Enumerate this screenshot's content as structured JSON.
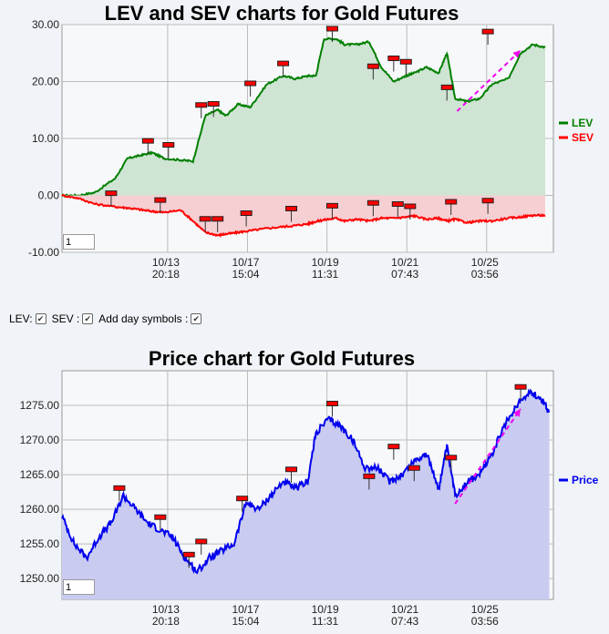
{
  "charts": {
    "lev_sev_title": "LEV and SEV charts for Gold Futures",
    "price_title": "Price chart for Gold Futures"
  },
  "options": {
    "lev_label": "LEV:",
    "sev_label": "SEV :",
    "day_symbols_label": "Add day symbols :",
    "lev_checked": true,
    "sev_checked": true,
    "day_symbols_checked": true
  },
  "zoom": {
    "top_value": "1",
    "bottom_value": "1"
  },
  "colors": {
    "lev": "#008000",
    "sev": "#ff0000",
    "price": "#0000ee",
    "lev_fill": "#cfe4d3",
    "sev_fill": "#f6cfd2",
    "price_fill": "#c9cbf0",
    "marker": "#ff0000",
    "arrow": "#ee00ee"
  },
  "chart_data": [
    {
      "type": "line",
      "title": "LEV and SEV charts for Gold Futures",
      "x_ticks": [
        {
          "x": 10.58,
          "line1": "10/13",
          "line2": "20:18"
        },
        {
          "x": 12.53,
          "line1": "10/17",
          "line2": "15:04"
        },
        {
          "x": 14.47,
          "line1": "10/19",
          "line2": "11:31"
        },
        {
          "x": 16.42,
          "line1": "10/21",
          "line2": "07:43"
        },
        {
          "x": 18.37,
          "line1": "10/25",
          "line2": "03:56"
        }
      ],
      "xlim": [
        8.0,
        20.0
      ],
      "ylim": [
        -10.0,
        30.0
      ],
      "y_ticks": [
        30.0,
        20.0,
        10.0,
        0.0,
        -10.0
      ],
      "y_tick_labels": [
        "30.00",
        "20.00",
        "10.00",
        "0.00",
        "-10.00"
      ],
      "legend": [
        {
          "name": "LEV",
          "color": "#008000"
        },
        {
          "name": "SEV",
          "color": "#ff0000"
        }
      ],
      "legend_position": "right",
      "series": [
        {
          "name": "LEV",
          "x": [
            8.0,
            8.4,
            8.8,
            9.3,
            9.6,
            9.9,
            10.2,
            10.5,
            10.9,
            11.2,
            11.5,
            11.8,
            12.0,
            12.3,
            12.6,
            13.0,
            13.4,
            13.7,
            14.0,
            14.2,
            14.4,
            14.7,
            14.9,
            15.2,
            15.5,
            15.8,
            16.1,
            16.4,
            16.6,
            16.9,
            17.2,
            17.4,
            17.6,
            17.9,
            18.2,
            18.5,
            18.9,
            19.2,
            19.5,
            19.8
          ],
          "values": [
            0.0,
            0.0,
            0.5,
            3.0,
            6.5,
            7.0,
            7.5,
            6.5,
            6.2,
            6.0,
            14.0,
            15.0,
            14.0,
            16.0,
            15.5,
            19.5,
            21.0,
            20.5,
            21.0,
            21.0,
            27.5,
            27.5,
            26.5,
            26.5,
            27.0,
            22.5,
            20.0,
            21.0,
            21.5,
            22.5,
            21.5,
            25.0,
            17.0,
            16.5,
            17.0,
            19.5,
            20.5,
            25.0,
            26.5,
            26.0
          ]
        },
        {
          "name": "SEV",
          "x": [
            8.0,
            8.4,
            8.8,
            9.3,
            9.6,
            9.9,
            10.2,
            10.5,
            10.9,
            11.2,
            11.5,
            11.8,
            12.0,
            12.3,
            12.6,
            13.0,
            13.4,
            13.7,
            14.0,
            14.2,
            14.4,
            14.7,
            14.9,
            15.2,
            15.5,
            15.8,
            16.1,
            16.4,
            16.6,
            16.9,
            17.2,
            17.4,
            17.6,
            17.9,
            18.2,
            18.5,
            18.9,
            19.2,
            19.5,
            19.8
          ],
          "values": [
            0.0,
            -0.5,
            -1.5,
            -2.0,
            -2.2,
            -2.5,
            -2.8,
            -3.0,
            -2.6,
            -4.5,
            -6.5,
            -7.0,
            -6.8,
            -6.5,
            -6.2,
            -5.8,
            -5.5,
            -5.3,
            -5.0,
            -4.6,
            -4.3,
            -4.0,
            -4.5,
            -4.2,
            -4.5,
            -4.0,
            -4.0,
            -3.8,
            -3.6,
            -4.2,
            -4.0,
            -4.5,
            -4.2,
            -4.8,
            -4.5,
            -4.5,
            -4.0,
            -3.8,
            -3.5,
            -3.5
          ]
        }
      ],
      "day_markers_lev": [
        [
          10.1,
          9.5
        ],
        [
          10.6,
          8.8
        ],
        [
          11.4,
          15.8
        ],
        [
          11.7,
          16.0
        ],
        [
          12.6,
          19.6
        ],
        [
          13.4,
          23.1
        ],
        [
          14.6,
          29.2
        ],
        [
          15.6,
          22.6
        ],
        [
          16.1,
          24.0
        ],
        [
          16.4,
          23.4
        ],
        [
          17.4,
          18.9
        ],
        [
          18.4,
          28.7
        ]
      ],
      "day_markers_sev": [
        [
          9.2,
          0.3
        ],
        [
          10.4,
          -0.9
        ],
        [
          11.5,
          -4.2
        ],
        [
          11.8,
          -4.2
        ],
        [
          12.5,
          -3.2
        ],
        [
          13.6,
          -2.4
        ],
        [
          14.6,
          -1.9
        ],
        [
          15.6,
          -1.4
        ],
        [
          16.2,
          -1.6
        ],
        [
          16.5,
          -2.0
        ],
        [
          17.5,
          -1.2
        ],
        [
          18.4,
          -1.0
        ]
      ],
      "trend_arrow": {
        "from": [
          17.65,
          14.8
        ],
        "to": [
          19.2,
          25.5
        ]
      }
    },
    {
      "type": "area",
      "title": "Price chart for Gold Futures",
      "x_ticks": [
        {
          "x": 10.58,
          "line1": "10/13",
          "line2": "20:18"
        },
        {
          "x": 12.53,
          "line1": "10/17",
          "line2": "15:04"
        },
        {
          "x": 14.47,
          "line1": "10/19",
          "line2": "11:31"
        },
        {
          "x": 16.42,
          "line1": "10/21",
          "line2": "07:43"
        },
        {
          "x": 18.37,
          "line1": "10/25",
          "line2": "03:56"
        }
      ],
      "xlim": [
        8.0,
        20.0
      ],
      "ylim": [
        1247.0,
        1280.0
      ],
      "y_ticks": [
        1275,
        1270,
        1265,
        1260,
        1255,
        1250
      ],
      "y_tick_labels": [
        "1275.00",
        "1270.00",
        "1265.00",
        "1260.00",
        "1255.00",
        "1250.00"
      ],
      "legend": [
        {
          "name": "Price",
          "color": "#0000ee"
        }
      ],
      "legend_position": "right",
      "series": [
        {
          "name": "Price",
          "x": [
            8.0,
            8.3,
            8.6,
            8.9,
            9.2,
            9.5,
            9.8,
            10.1,
            10.4,
            10.7,
            11.0,
            11.3,
            11.6,
            11.9,
            12.2,
            12.5,
            12.8,
            13.1,
            13.4,
            13.7,
            14.0,
            14.2,
            14.5,
            14.8,
            15.1,
            15.4,
            15.7,
            16.0,
            16.3,
            16.6,
            16.9,
            17.2,
            17.4,
            17.6,
            17.9,
            18.2,
            18.5,
            18.8,
            19.1,
            19.4,
            19.7,
            19.9
          ],
          "values": [
            1259,
            1255,
            1253,
            1256,
            1258,
            1262,
            1260,
            1258,
            1257,
            1256,
            1253,
            1251,
            1253,
            1254,
            1255,
            1261,
            1260,
            1262,
            1264,
            1263,
            1264,
            1271,
            1273,
            1272,
            1270,
            1266,
            1266,
            1264,
            1265,
            1267,
            1268,
            1263,
            1269,
            1262,
            1264,
            1265,
            1268,
            1272,
            1275,
            1277,
            1276,
            1274
          ]
        }
      ],
      "day_markers": [
        [
          9.4,
          1263.0
        ],
        [
          10.4,
          1258.8
        ],
        [
          11.1,
          1253.4
        ],
        [
          11.4,
          1255.3
        ],
        [
          12.4,
          1261.5
        ],
        [
          13.6,
          1265.7
        ],
        [
          14.6,
          1275.2
        ],
        [
          15.5,
          1264.7
        ],
        [
          16.1,
          1269.0
        ],
        [
          16.6,
          1265.9
        ],
        [
          17.5,
          1267.4
        ],
        [
          19.2,
          1277.6
        ]
      ],
      "trend_arrow": {
        "from": [
          17.6,
          1260.8
        ],
        "to": [
          19.2,
          1274.5
        ]
      }
    }
  ]
}
